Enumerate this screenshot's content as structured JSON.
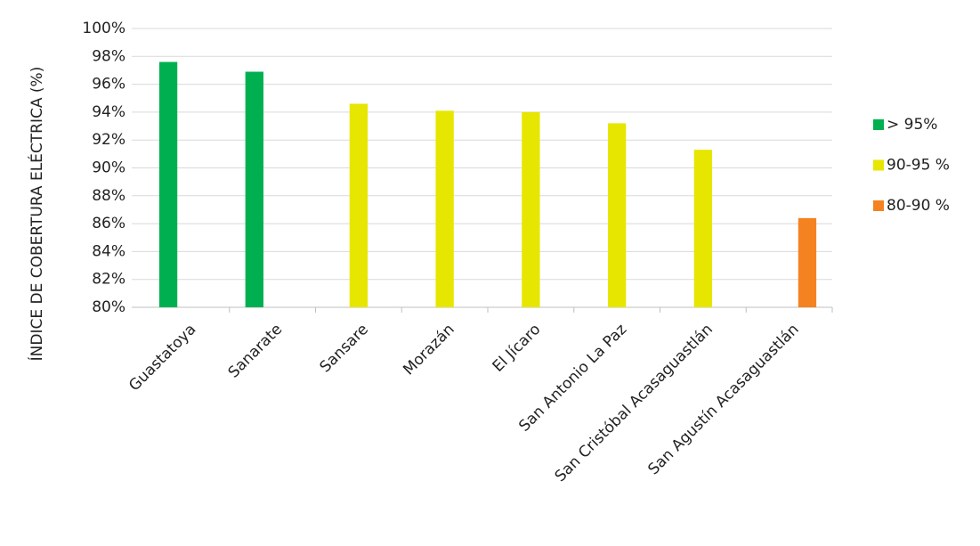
{
  "chart_data": {
    "type": "bar",
    "y_label": "ÍNDICE DE COBERTURA ELÉCTRICA (%)",
    "categories": [
      "Guastatoya",
      "Sanarate",
      "Sansare",
      "Morazán",
      "El Jícaro",
      "San Antonio La Paz",
      "San Cristóbal Acasaguastlán",
      "San Agustín Acasaguastlán"
    ],
    "series": [
      {
        "name": "> 95%",
        "color": "#00b050",
        "values": [
          97.6,
          96.9,
          null,
          null,
          null,
          null,
          null,
          null
        ]
      },
      {
        "name": "90-95 %",
        "color": "#e6e600",
        "values": [
          null,
          null,
          94.6,
          94.1,
          94.0,
          93.2,
          91.3,
          null
        ]
      },
      {
        "name": "80-90 %",
        "color": "#f58220",
        "values": [
          null,
          null,
          null,
          null,
          null,
          null,
          null,
          86.4
        ]
      }
    ],
    "ylim": [
      80,
      100
    ],
    "yticks": [
      {
        "value": 80,
        "label": "80%"
      },
      {
        "value": 82,
        "label": "82%"
      },
      {
        "value": 84,
        "label": "84%"
      },
      {
        "value": 86,
        "label": "86%"
      },
      {
        "value": 88,
        "label": "88%"
      },
      {
        "value": 90,
        "label": "90%"
      },
      {
        "value": 92,
        "label": "92%"
      },
      {
        "value": 94,
        "label": "94%"
      },
      {
        "value": 96,
        "label": "96%"
      },
      {
        "value": 98,
        "label": "98%"
      },
      {
        "value": 100,
        "label": "100%"
      }
    ],
    "grid": true,
    "legend": "right"
  }
}
